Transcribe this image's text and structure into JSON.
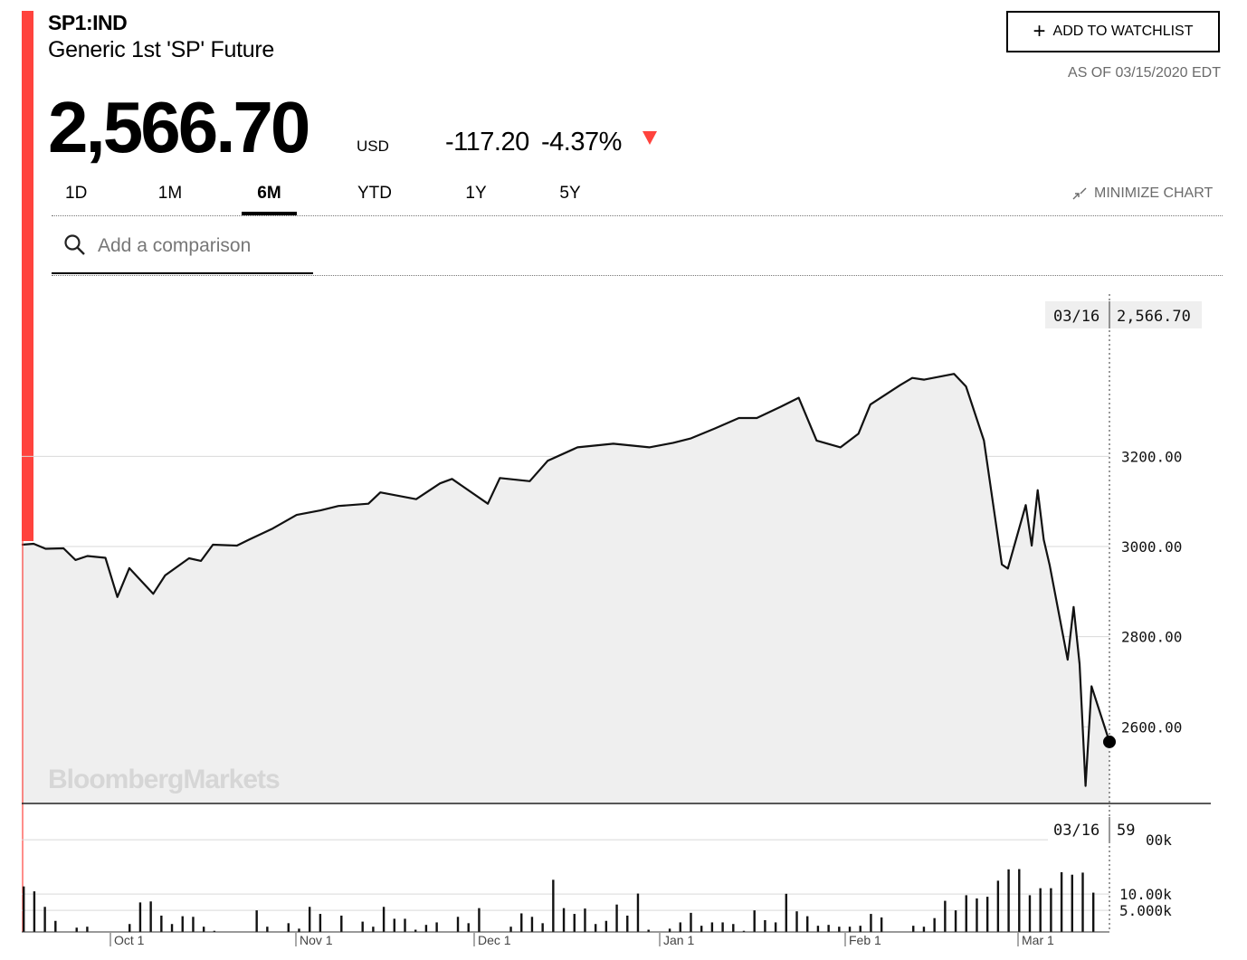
{
  "header": {
    "ticker": "SP1:IND",
    "name": "Generic 1st 'SP' Future",
    "price": "2,566.70",
    "currency": "USD",
    "change": "-117.20",
    "change_pct": "-4.37%",
    "direction": "down",
    "down_color": "#ff433d"
  },
  "actions": {
    "watchlist_label": "ADD TO WATCHLIST",
    "as_of": "AS OF 03/15/2020 EDT",
    "minimize_label": "MINIMIZE CHART"
  },
  "tabs": [
    {
      "label": "1D",
      "active": false
    },
    {
      "label": "1M",
      "active": false
    },
    {
      "label": "6M",
      "active": true
    },
    {
      "label": "YTD",
      "active": false
    },
    {
      "label": "1Y",
      "active": false
    },
    {
      "label": "5Y",
      "active": false
    }
  ],
  "search": {
    "placeholder": "Add a comparison"
  },
  "watermark": "BloombergMarkets",
  "chart_data": [
    {
      "type": "area",
      "series": [
        {
          "x": [
            "2019-09-16",
            "2019-09-18",
            "2019-09-20",
            "2019-09-23",
            "2019-09-25",
            "2019-09-27",
            "2019-09-30",
            "2019-10-02",
            "2019-10-04",
            "2019-10-08",
            "2019-10-10",
            "2019-10-14",
            "2019-10-16",
            "2019-10-18",
            "2019-10-22",
            "2019-10-24",
            "2019-10-28",
            "2019-11-01",
            "2019-11-05",
            "2019-11-08",
            "2019-11-13",
            "2019-11-15",
            "2019-11-21",
            "2019-11-25",
            "2019-11-27",
            "2019-12-03",
            "2019-12-05",
            "2019-12-10",
            "2019-12-13",
            "2019-12-18",
            "2019-12-24",
            "2019-12-30",
            "2020-01-03",
            "2020-01-06",
            "2020-01-10",
            "2020-01-14",
            "2020-01-17",
            "2020-01-21",
            "2020-01-24",
            "2020-01-27",
            "2020-01-31",
            "2020-02-03",
            "2020-02-05",
            "2020-02-10",
            "2020-02-12",
            "2020-02-14",
            "2020-02-19",
            "2020-02-21",
            "2020-02-24",
            "2020-02-27",
            "2020-02-28",
            "2020-03-02",
            "2020-03-03",
            "2020-03-04",
            "2020-03-05",
            "2020-03-06",
            "2020-03-09",
            "2020-03-10",
            "2020-03-11",
            "2020-03-12",
            "2020-03-13",
            "2020-03-16"
          ],
          "y": [
            3004,
            3006,
            2995,
            2996,
            2970,
            2979,
            2975,
            2888,
            2952,
            2895,
            2936,
            2974,
            2968,
            3004,
            3002,
            3015,
            3040,
            3070,
            3080,
            3090,
            3095,
            3120,
            3105,
            3140,
            3150,
            3095,
            3152,
            3145,
            3190,
            3220,
            3228,
            3220,
            3230,
            3240,
            3262,
            3285,
            3285,
            3310,
            3330,
            3235,
            3220,
            3250,
            3315,
            3358,
            3374,
            3370,
            3383,
            3355,
            3235,
            2960,
            2951,
            3092,
            3002,
            3125,
            3015,
            2958,
            2749,
            2866,
            2739,
            2469,
            2690,
            2566.7
          ]
        }
      ],
      "ylim": [
        2430,
        3570
      ],
      "y_ticks": [
        "3200.00",
        "3000.00",
        "2800.00",
        "2600.00"
      ],
      "x_ticks": [
        "Oct 1",
        "Nov 1",
        "Dec 1",
        "Jan 1",
        "Feb 1",
        "Mar 1"
      ],
      "last_date": "03/16",
      "last_value": "2,566.70"
    },
    {
      "type": "bar",
      "values": [
        13800,
        11200,
        5800,
        3200,
        1900,
        2400,
        2500,
        2000,
        1500,
        1100,
        2800,
        7000,
        7300,
        4000,
        2800,
        3900,
        3800,
        2500,
        2100,
        1300,
        1600,
        1800,
        5000,
        2500,
        1800,
        2900,
        2300,
        5800,
        4300,
        2000,
        4000,
        1400,
        3100,
        2500,
        5800,
        3500,
        3500,
        2200,
        2700,
        3000,
        1900,
        3800,
        2900,
        5500,
        1500,
        1900,
        2500,
        4400,
        3800,
        2900,
        18300,
        5500,
        4300,
        5400,
        2800,
        3200,
        6400,
        4000,
        10200,
        2200,
        1900,
        2300,
        3000,
        4500,
        2600,
        3000,
        3000,
        2800,
        2100,
        5000,
        3300,
        3000,
        10100,
        4800,
        3900,
        2600,
        2700,
        2500,
        2500,
        2600,
        4300,
        3700,
        1400,
        1400,
        2600,
        2500,
        3600,
        7500,
        5000,
        9500,
        8300,
        8900,
        17600,
        28500,
        28800,
        9500,
        12800,
        12800,
        25200,
        22700,
        24800,
        10600
      ],
      "ylim": [
        2000,
        400000
      ],
      "y_ticks": [
        "10.00k",
        "5.000k"
      ],
      "last_date": "03/16",
      "last_value": "59",
      "top_tick_partial": "00k"
    }
  ]
}
